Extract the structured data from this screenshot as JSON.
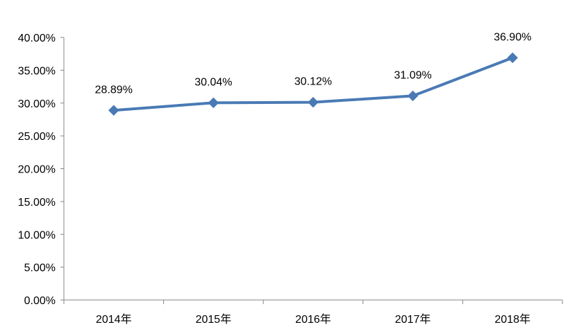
{
  "chart_data": {
    "type": "line",
    "categories": [
      "2014年",
      "2015年",
      "2016年",
      "2017年",
      "2018年"
    ],
    "series": [
      {
        "values": [
          28.89,
          30.04,
          30.12,
          31.09,
          36.9
        ],
        "data_labels": [
          "28.89%",
          "30.04%",
          "30.12%",
          "31.09%",
          "36.90%"
        ],
        "color": "#4a7ab5",
        "marker": "diamond"
      }
    ],
    "y_ticks": [
      "0.00%",
      "5.00%",
      "10.00%",
      "15.00%",
      "20.00%",
      "25.00%",
      "30.00%",
      "35.00%",
      "40.00%"
    ],
    "ylim": [
      0,
      40
    ],
    "y_unit": "%",
    "grid": false,
    "legend": "none"
  }
}
